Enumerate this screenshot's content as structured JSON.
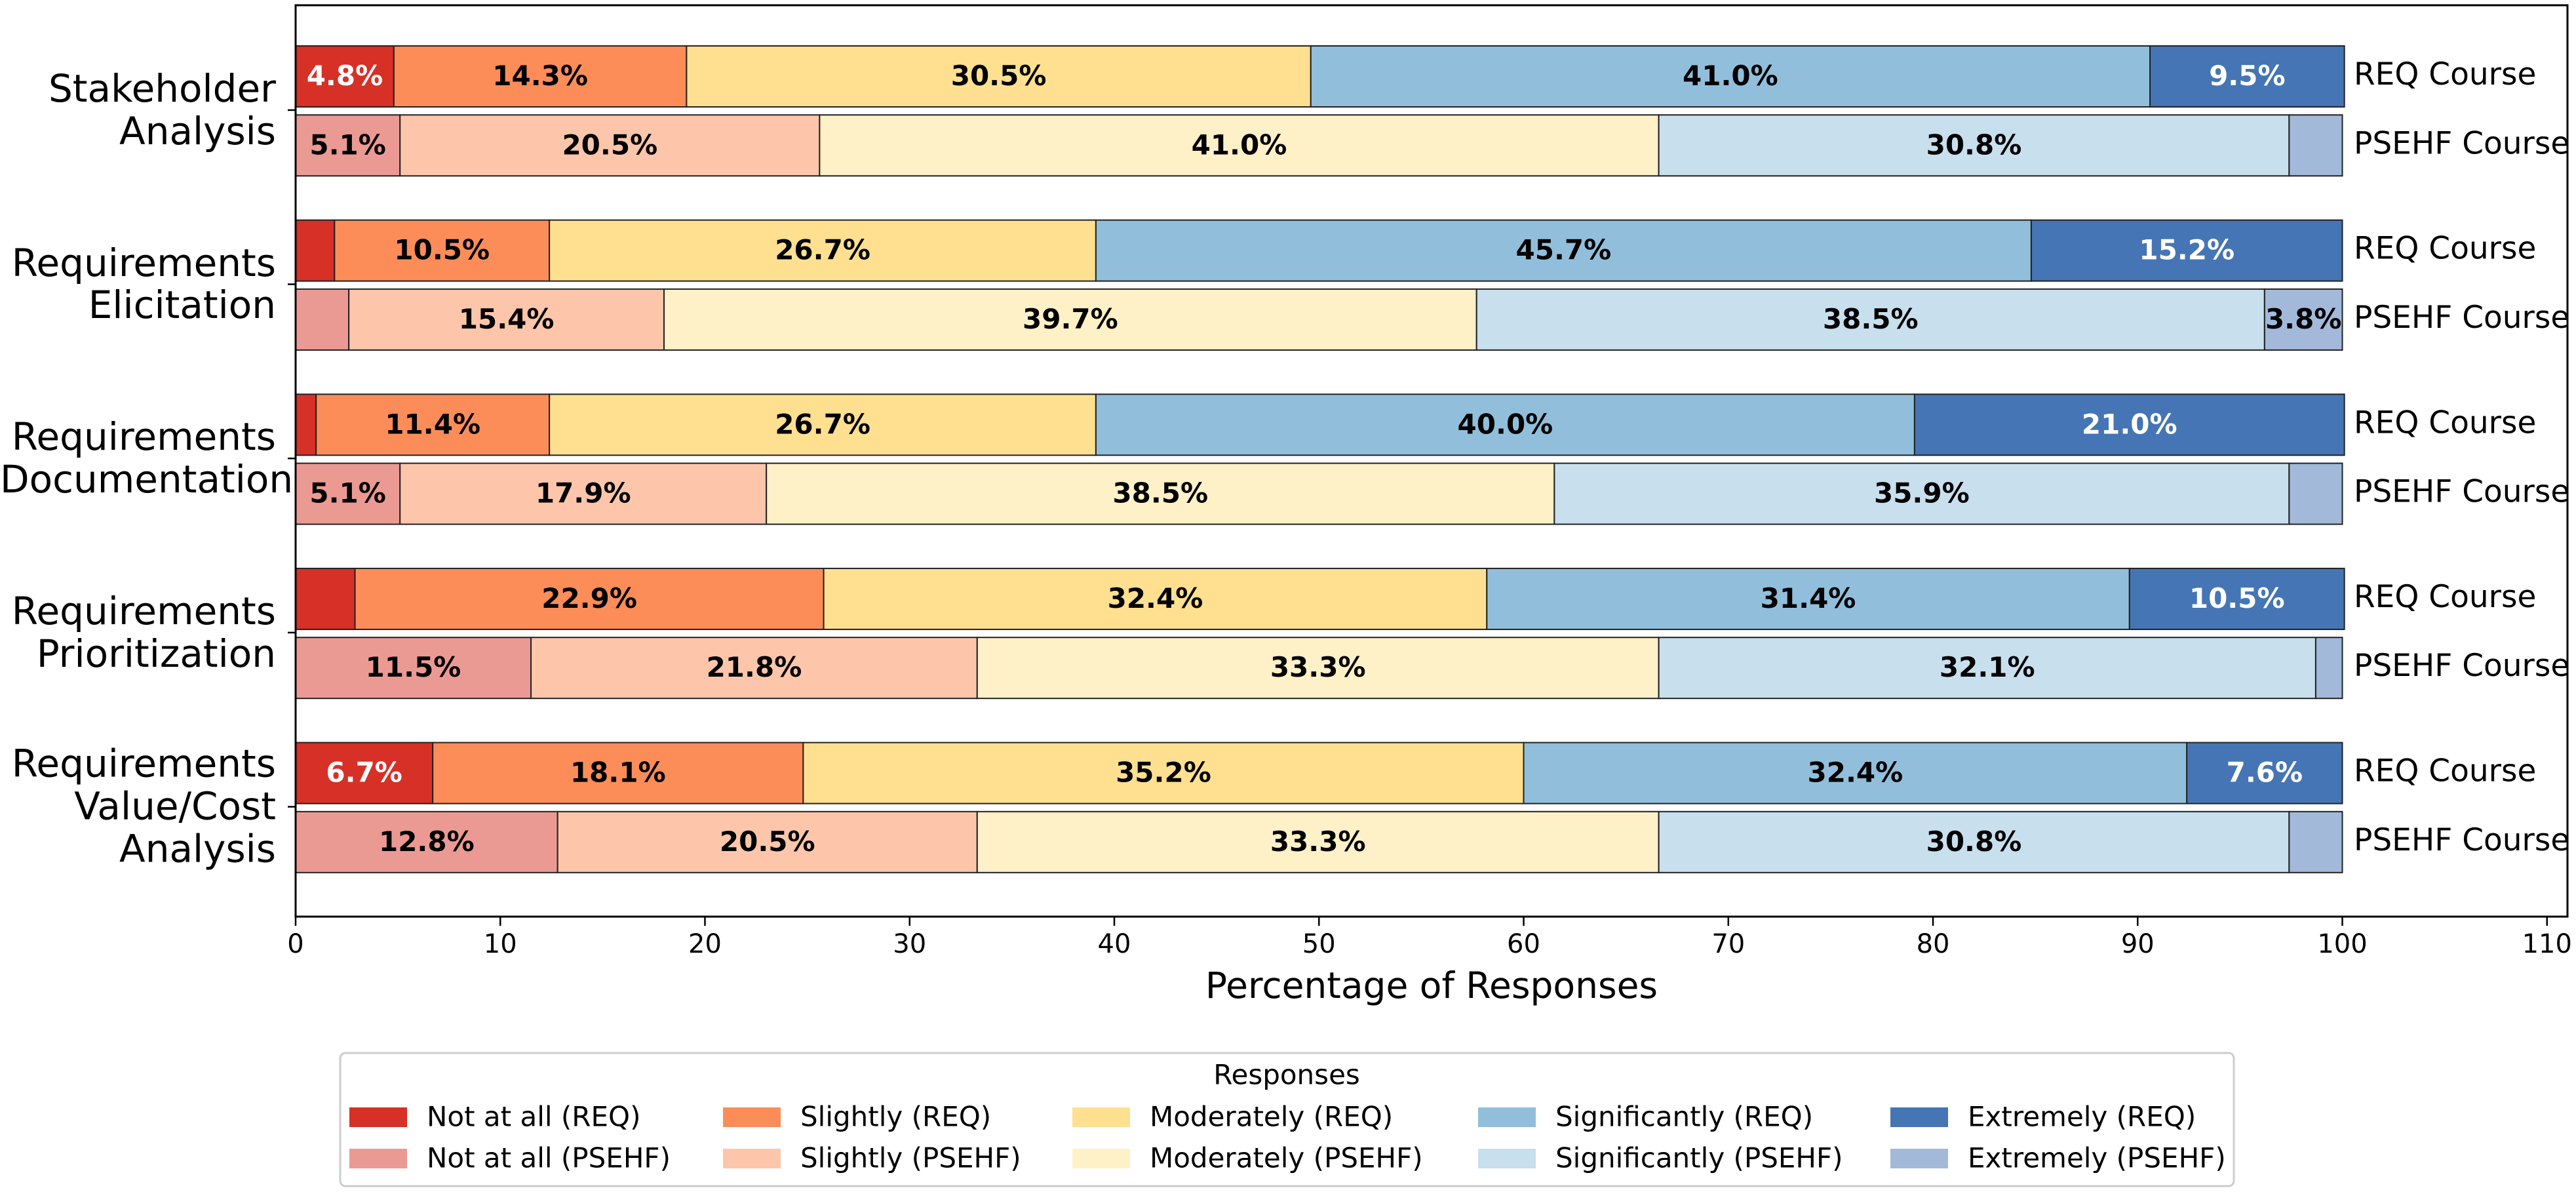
{
  "chart_data": {
    "type": "stacked-bar-horizontal",
    "categories": [
      "Stakeholder\nAnalysis",
      "Requirements\nElicitation",
      "Requirements\nDocumentation",
      "Requirements\nPrioritization",
      "Requirements\nValue/Cost\nAnalysis"
    ],
    "groups": [
      {
        "name": "REQ Course",
        "series": [
          {
            "name": "Not at all (REQ)",
            "color": "#d73027",
            "label_color": "#ffffff",
            "values": [
              4.8,
              1.9,
              1.0,
              2.9,
              6.7
            ],
            "value_labels": [
              "4.8%",
              null,
              null,
              null,
              "6.7%"
            ]
          },
          {
            "name": "Slightly (REQ)",
            "color": "#fc8d59",
            "label_color": "#000000",
            "values": [
              14.3,
              10.5,
              11.4,
              22.9,
              18.1
            ],
            "value_labels": [
              "14.3%",
              "10.5%",
              "11.4%",
              "22.9%",
              "18.1%"
            ]
          },
          {
            "name": "Moderately (REQ)",
            "color": "#fee090",
            "label_color": "#000000",
            "values": [
              30.5,
              26.7,
              26.7,
              32.4,
              35.2
            ],
            "value_labels": [
              "30.5%",
              "26.7%",
              "26.7%",
              "32.4%",
              "35.2%"
            ]
          },
          {
            "name": "Significantly (REQ)",
            "color": "#91bfdb",
            "label_color": "#000000",
            "values": [
              41.0,
              45.7,
              40.0,
              31.4,
              32.4
            ],
            "value_labels": [
              "41.0%",
              "45.7%",
              "40.0%",
              "31.4%",
              "32.4%"
            ]
          },
          {
            "name": "Extremely (REQ)",
            "color": "#4575b4",
            "label_color": "#ffffff",
            "values": [
              9.5,
              15.2,
              21.0,
              10.5,
              7.6
            ],
            "value_labels": [
              "9.5%",
              "15.2%",
              "21.0%",
              "10.5%",
              "7.6%"
            ]
          }
        ]
      },
      {
        "name": "PSEHF Course",
        "series": [
          {
            "name": "Not at all (PSEHF)",
            "color": "#eb9a93",
            "label_color": "#000000",
            "values": [
              5.1,
              2.6,
              5.1,
              11.5,
              12.8
            ],
            "value_labels": [
              "5.1%",
              null,
              "5.1%",
              "11.5%",
              "12.8%"
            ]
          },
          {
            "name": "Slightly (PSEHF)",
            "color": "#fdc6ab",
            "label_color": "#000000",
            "values": [
              20.5,
              15.4,
              17.9,
              21.8,
              20.5
            ],
            "value_labels": [
              "20.5%",
              "15.4%",
              "17.9%",
              "21.8%",
              "20.5%"
            ]
          },
          {
            "name": "Moderately (PSEHF)",
            "color": "#fef0c7",
            "label_color": "#000000",
            "values": [
              41.0,
              39.7,
              38.5,
              33.3,
              33.3
            ],
            "value_labels": [
              "41.0%",
              "39.7%",
              "38.5%",
              "33.3%",
              "33.3%"
            ]
          },
          {
            "name": "Significantly (PSEHF)",
            "color": "#c8dfed",
            "label_color": "#000000",
            "values": [
              30.8,
              38.5,
              35.9,
              32.1,
              30.8
            ],
            "value_labels": [
              "30.8%",
              "38.5%",
              "35.9%",
              "32.1%",
              "30.8%"
            ]
          },
          {
            "name": "Extremely (PSEHF)",
            "color": "#a2b9da",
            "label_color": "#000000",
            "values": [
              2.6,
              3.8,
              2.6,
              1.3,
              2.6
            ],
            "value_labels": [
              null,
              "3.8%",
              null,
              null,
              null
            ]
          }
        ]
      }
    ],
    "xlabel": "Percentage of Responses",
    "xlim": [
      0,
      111
    ],
    "xticks": [
      0,
      10,
      20,
      30,
      40,
      50,
      60,
      70,
      80,
      90,
      100,
      110
    ],
    "legend_title": "Responses",
    "legend": "bottom"
  }
}
